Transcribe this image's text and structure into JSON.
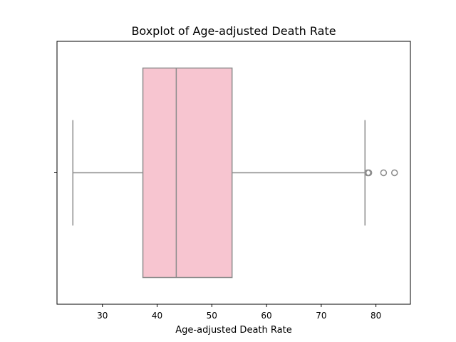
{
  "chart_data": {
    "type": "boxplot",
    "title": "Boxplot of Age-adjusted Death Rate",
    "xlabel": "Age-adjusted Death Rate",
    "ylabel": "",
    "xlim": [
      21.7,
      86.3
    ],
    "xticks": [
      30,
      40,
      50,
      60,
      70,
      80
    ],
    "grid": false,
    "box": {
      "whisker_low": 24.6,
      "q1": 37.4,
      "median": 43.5,
      "q3": 53.7,
      "whisker_high": 78.0,
      "outliers": [
        78.5,
        78.7,
        81.4,
        83.4
      ]
    },
    "colors": {
      "box_fill": "#f7c5d0",
      "line": "#8c8c8c",
      "frame": "#000000"
    }
  }
}
